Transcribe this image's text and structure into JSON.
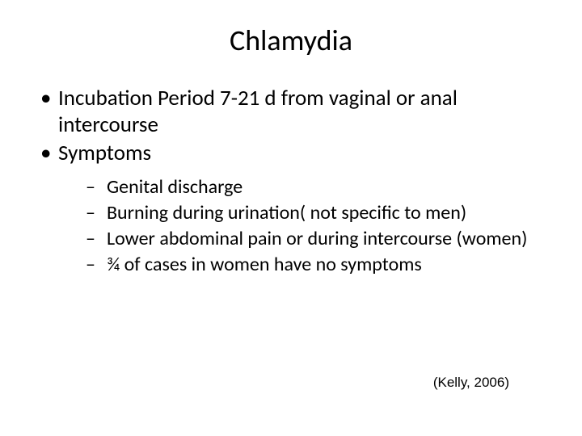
{
  "background_color": "#ffffff",
  "text_color": "#000000",
  "title": {
    "text": "Chlamydia",
    "font_size": 36,
    "align": "center"
  },
  "bullets": {
    "level1": [
      {
        "text": "Incubation Period 7-21 d from vaginal or anal intercourse"
      },
      {
        "text": "Symptoms"
      }
    ],
    "level2": [
      {
        "text": " Genital discharge"
      },
      {
        "text": "Burning during urination( not specific to men)"
      },
      {
        "text": "Lower abdominal pain or during intercourse (women)"
      },
      {
        "text": "¾ of cases in women have no symptoms"
      }
    ],
    "level1_fontsize": 27,
    "level2_fontsize": 24,
    "bullet1_glyph": "•",
    "bullet2_glyph": "–"
  },
  "citation": {
    "text": "(Kelly, 2006)",
    "font_family": "Arial",
    "font_size": 17
  }
}
